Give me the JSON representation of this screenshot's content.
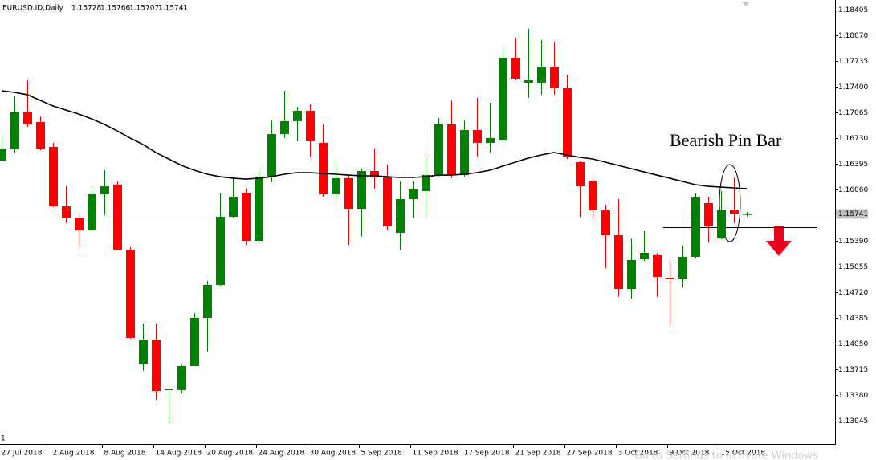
{
  "chart_data": {
    "type": "candlestick",
    "symbol": "EURUSD.ID,Daily",
    "annotation": "Bearish Pin Bar",
    "corner_mark": "1",
    "watermark": "Go to Settings to activate Windows",
    "up_color": "#008000",
    "down_color": "#ff0000",
    "categories": [
      "27 Jul 2018",
      null,
      null,
      null,
      "2 Aug 2018",
      null,
      null,
      null,
      "8 Aug 2018",
      null,
      null,
      null,
      "14 Aug 2018",
      null,
      null,
      null,
      "20 Aug 2018",
      null,
      null,
      null,
      "24 Aug 2018",
      null,
      null,
      null,
      "30 Aug 2018",
      null,
      null,
      null,
      "5 Sep 2018",
      null,
      null,
      null,
      "11 Sep 2018",
      null,
      null,
      null,
      "17 Sep 2018",
      null,
      null,
      null,
      "21 Sep 2018",
      null,
      null,
      null,
      "27 Sep 2018",
      null,
      null,
      null,
      "3 Oct 2018",
      null,
      null,
      null,
      "9 Oct 2018",
      null,
      null,
      null,
      "15 Oct 2018",
      null,
      null
    ],
    "open": [
      1.16437,
      1.16584,
      1.17065,
      1.1694,
      1.16615,
      1.1584,
      1.15683,
      1.15526,
      1.15997,
      1.16123,
      1.15275,
      1.13788,
      1.14102,
      1.13443,
      1.13443,
      1.13757,
      1.14385,
      1.14814,
      1.15704,
      1.16018,
      1.1539,
      1.16227,
      1.16782,
      1.16951,
      1.17086,
      1.16668,
      1.15997,
      1.16207,
      1.15809,
      1.16301,
      1.16227,
      1.15495,
      1.15934,
      1.16039,
      1.16248,
      1.16908,
      1.16248,
      1.16835,
      1.16668,
      1.16699,
      1.17777,
      1.17453,
      1.17453,
      1.17662,
      1.17379,
      1.16416,
      1.16173,
      1.15788,
      1.15463,
      1.14761,
      1.15149,
      1.15202,
      1.14908,
      1.14898,
      1.15181,
      1.15882,
      1.15421,
      1.15798,
      1.15728
    ],
    "high": [
      1.16752,
      1.17275,
      1.17484,
      1.17013,
      1.16668,
      1.16101,
      1.15725,
      1.1607,
      1.16311,
      1.16165,
      1.15306,
      1.14312,
      1.14312,
      1.13474,
      1.13767,
      1.14448,
      1.14866,
      1.16018,
      1.16207,
      1.1607,
      1.16332,
      1.16961,
      1.17348,
      1.17138,
      1.1717,
      1.16908,
      1.16437,
      1.16238,
      1.16332,
      1.16594,
      1.16385,
      1.16165,
      1.16173,
      1.16489,
      1.16992,
      1.17222,
      1.16961,
      1.17254,
      1.17191,
      1.17903,
      1.18039,
      1.18154,
      1.18007,
      1.17987,
      1.17557,
      1.16437,
      1.16207,
      1.15861,
      1.15934,
      1.15421,
      1.15516,
      1.15233,
      1.15128,
      1.15327,
      1.16018,
      1.15966,
      1.16039,
      1.16217,
      1.15766
    ],
    "low": [
      1.16437,
      1.16542,
      1.16877,
      1.16573,
      1.1583,
      1.1562,
      1.15306,
      1.15516,
      1.15725,
      1.15265,
      1.14113,
      1.13694,
      1.13317,
      1.13013,
      1.13401,
      1.13757,
      1.13945,
      1.14803,
      1.15683,
      1.15338,
      1.15359,
      1.16154,
      1.16731,
      1.16688,
      1.16489,
      1.15966,
      1.15913,
      1.15338,
      1.15442,
      1.1607,
      1.15526,
      1.15265,
      1.15683,
      1.15704,
      1.16227,
      1.16207,
      1.16227,
      1.16489,
      1.16542,
      1.16668,
      1.17484,
      1.17254,
      1.17296,
      1.17296,
      1.16458,
      1.15704,
      1.15673,
      1.15034,
      1.14657,
      1.14636,
      1.15128,
      1.14657,
      1.14312,
      1.14782,
      1.1516,
      1.15369,
      1.15411,
      1.1562,
      1.15707
    ],
    "close": [
      1.16584,
      1.17065,
      1.16908,
      1.16594,
      1.1584,
      1.15683,
      1.15526,
      1.15997,
      1.16101,
      1.15275,
      1.14123,
      1.14102,
      1.13432,
      1.13453,
      1.13757,
      1.14385,
      1.14814,
      1.15704,
      1.15966,
      1.1539,
      1.16227,
      1.16782,
      1.16951,
      1.17086,
      1.16688,
      1.15997,
      1.16207,
      1.15809,
      1.16301,
      1.16227,
      1.15578,
      1.15934,
      1.1606,
      1.16248,
      1.16908,
      1.16248,
      1.16835,
      1.16668,
      1.16731,
      1.17777,
      1.17505,
      1.17484,
      1.17662,
      1.17379,
      1.16489,
      1.16101,
      1.15788,
      1.15463,
      1.14761,
      1.15139,
      1.15233,
      1.14919,
      1.14898,
      1.15181,
      1.15955,
      1.15578,
      1.15788,
      1.15746,
      1.15741
    ],
    "moving_average": {
      "color": "#000000",
      "values": [
        1.17348,
        1.17327,
        1.17296,
        1.17222,
        1.17149,
        1.17097,
        1.17044,
        1.16982,
        1.16908,
        1.16824,
        1.16731,
        1.16647,
        1.16542,
        1.16458,
        1.16374,
        1.16311,
        1.16259,
        1.16227,
        1.16207,
        1.16196,
        1.16207,
        1.16227,
        1.16259,
        1.1628,
        1.1628,
        1.16269,
        1.16259,
        1.16248,
        1.16238,
        1.16238,
        1.16227,
        1.16217,
        1.16217,
        1.16227,
        1.16248,
        1.16248,
        1.16259,
        1.1628,
        1.16311,
        1.16364,
        1.16416,
        1.16469,
        1.1651,
        1.16542,
        1.1651,
        1.16479,
        1.16458,
        1.16416,
        1.16374,
        1.16332,
        1.1629,
        1.16248,
        1.16207,
        1.16165,
        1.16123,
        1.16101,
        1.16091,
        1.16081,
        1.1607
      ]
    },
    "support_level": 1.15567,
    "ylim": [
      1.12741,
      1.18531
    ],
    "yticks": [
      1.18405,
      {
        "value": 1.1807,
        "label": "1.18070"
      },
      1.17735,
      {
        "value": 1.174,
        "label": "1.17400"
      },
      1.17065,
      {
        "value": 1.1673,
        "label": "1.16730"
      },
      1.16395,
      {
        "value": 1.1606,
        "label": "1.16060"
      },
      {
        "value": 1.1539,
        "label": "1.15390"
      },
      1.15055,
      {
        "value": 1.1472,
        "label": "1.14720"
      },
      1.14385,
      {
        "value": 1.1405,
        "label": "1.14050"
      },
      1.13715,
      {
        "value": 1.1338,
        "label": "1.13380"
      },
      1.13045
    ],
    "grid": false
  }
}
